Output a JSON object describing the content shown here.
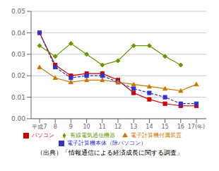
{
  "chart_data": {
    "type": "line",
    "categories": [
      "平成7",
      "8",
      "9",
      "10",
      "11",
      "12",
      "13",
      "14",
      "15",
      "16",
      "17(年)"
    ],
    "series": [
      {
        "name": "パソコン",
        "color": "#cc0000",
        "marker": "square",
        "line_style": "solid",
        "values": [
          0.04,
          0.025,
          0.02,
          0.021,
          0.021,
          0.018,
          0.012,
          0.009,
          0.007,
          0.006,
          0.006
        ]
      },
      {
        "name": "電子計算機本体（除パソコン）",
        "color": "#3333cc",
        "marker": "square",
        "line_style": "dashed",
        "values": [
          0.04,
          0.024,
          0.019,
          0.02,
          0.02,
          0.017,
          0.014,
          0.012,
          0.01,
          0.007,
          0.007
        ]
      },
      {
        "name": "電子計算機付属装置",
        "color": "#cc7700",
        "marker": "triangle",
        "line_style": "solid",
        "values": [
          0.024,
          0.019,
          0.017,
          0.018,
          0.018,
          0.017,
          0.016,
          0.015,
          0.014,
          0.013,
          0.016
        ]
      },
      {
        "name": "有線電気通信機器",
        "color": "#669900",
        "marker": "diamond",
        "line_style": "solid",
        "values": [
          0.034,
          0.029,
          0.035,
          0.03,
          0.025,
          0.027,
          0.034,
          0.034,
          0.029,
          0.025,
          null
        ]
      }
    ],
    "ylim": [
      0.0,
      0.05
    ],
    "yticks": [
      {
        "value": 0,
        "label": "0.00"
      },
      0.01,
      0.02,
      0.03,
      0.04,
      0.05
    ],
    "grid": true,
    "legend": "bottom",
    "annotations": [
      "（出典）「情報通信による経済成長に関する調査」"
    ]
  }
}
